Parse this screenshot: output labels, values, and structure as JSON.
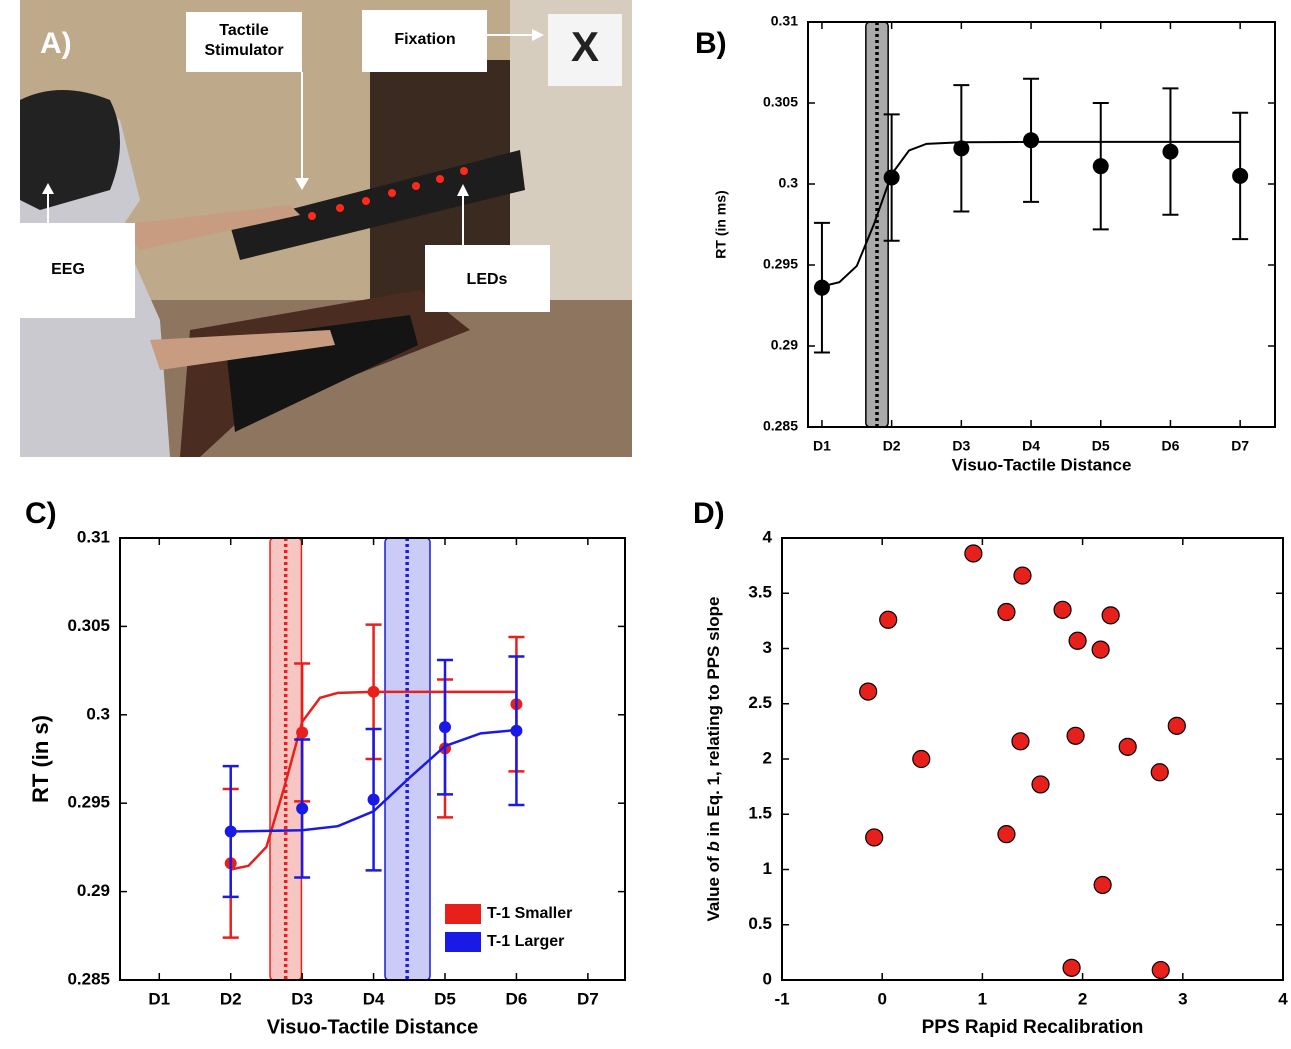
{
  "photo": {
    "panel_label": "A)",
    "tactile_stimulator": [
      "Tactile",
      "Stimulator"
    ],
    "fixation": "Fixation",
    "target": "X",
    "eeg": "EEG",
    "leds": "LEDs"
  },
  "chart_data": [
    {
      "type": "errorbar",
      "panel_label": "B)",
      "xlabel": "Visuo-Tactile Distance",
      "ylabel": "RT (in ms)",
      "xlim": [
        0.8,
        7.5
      ],
      "xticks": [
        {
          "value": 1,
          "label": "D1"
        },
        {
          "value": 2,
          "label": "D2"
        },
        {
          "value": 3,
          "label": "D3"
        },
        {
          "value": 4,
          "label": "D4"
        },
        {
          "value": 5,
          "label": "D5"
        },
        {
          "value": 6,
          "label": "D6"
        },
        {
          "value": 7,
          "label": "D7"
        }
      ],
      "ylim": [
        0.285,
        0.31
      ],
      "yticks": [
        0.285,
        0.29,
        0.295,
        0.3,
        0.305,
        0.31
      ],
      "series": [
        {
          "color": "#000000",
          "x": [
            1,
            2,
            3,
            4,
            5,
            6,
            7
          ],
          "values": [
            0.2936,
            0.3004,
            0.3022,
            0.3027,
            0.3011,
            0.302,
            0.3005
          ],
          "errors": [
            0.004,
            0.0039,
            0.0039,
            0.0038,
            0.0039,
            0.0039,
            0.0039
          ],
          "fit_x": [
            1,
            1.25,
            1.5,
            1.75,
            2,
            2.25,
            2.5,
            3,
            4,
            5,
            6,
            7
          ],
          "fit_values": [
            0.29368,
            0.29394,
            0.29494,
            0.29756,
            0.3006,
            0.30207,
            0.30248,
            0.30258,
            0.3026,
            0.3026,
            0.3026,
            0.3026
          ],
          "threshold": 1.79,
          "threshold_band": [
            1.63,
            1.95
          ],
          "band_color": "#aaaaaa"
        }
      ]
    },
    {
      "type": "errorbar",
      "panel_label": "C)",
      "xlabel": "Visuo-Tactile Distance",
      "ylabel": "RT (in s)",
      "xlim": [
        0.45,
        7.52
      ],
      "xticks": [
        {
          "value": 1,
          "label": "D1"
        },
        {
          "value": 2,
          "label": "D2"
        },
        {
          "value": 3,
          "label": "D3"
        },
        {
          "value": 4,
          "label": "D4"
        },
        {
          "value": 5,
          "label": "D5"
        },
        {
          "value": 6,
          "label": "D6"
        },
        {
          "value": 7,
          "label": "D7"
        }
      ],
      "ylim": [
        0.285,
        0.31
      ],
      "yticks": [
        0.285,
        0.29,
        0.295,
        0.3,
        0.305,
        0.31
      ],
      "legend": "lower right",
      "series": [
        {
          "name": "T-1 Smaller",
          "color": "#e8201c",
          "x": [
            2,
            3,
            4,
            5,
            6
          ],
          "values": [
            0.2916,
            0.299,
            0.3013,
            0.2981,
            0.3006
          ],
          "errors": [
            0.0042,
            0.0039,
            0.0038,
            0.0039,
            0.0038
          ],
          "fit_x": [
            2,
            2.25,
            2.5,
            2.75,
            3,
            3.25,
            3.5,
            4,
            5,
            6
          ],
          "fit_values": [
            0.29125,
            0.29146,
            0.29253,
            0.2959,
            0.2996,
            0.30096,
            0.30124,
            0.3013,
            0.3013,
            0.3013
          ],
          "threshold": 2.77,
          "threshold_band": [
            2.55,
            2.99
          ],
          "band_color": "#f4a09a"
        },
        {
          "name": "T-1 Larger",
          "color": "#1a1ae6",
          "x": [
            2,
            3,
            4,
            5,
            6
          ],
          "values": [
            0.2934,
            0.2947,
            0.2952,
            0.2993,
            0.2991
          ],
          "errors": [
            0.0037,
            0.0039,
            0.004,
            0.0038,
            0.0042
          ],
          "fit_x": [
            2,
            3,
            3.5,
            4,
            4.5,
            5,
            5.5,
            6
          ],
          "fit_values": [
            0.2934,
            0.29347,
            0.2937,
            0.29454,
            0.29643,
            0.29823,
            0.29895,
            0.29914
          ],
          "threshold": 4.47,
          "threshold_band": [
            4.16,
            4.79
          ],
          "band_color": "#a6a8f0"
        }
      ]
    },
    {
      "type": "scatter",
      "panel_label": "D)",
      "xlabel": "PPS Rapid Recalibration",
      "ylabel": [
        "Value of ",
        "b",
        " in Eq. 1, relating to PPS slope"
      ],
      "xlim": [
        -1,
        4
      ],
      "xticks": [
        -1,
        0,
        1,
        2,
        3,
        4
      ],
      "ylim": [
        0,
        4
      ],
      "yticks": [
        0,
        0.5,
        1,
        1.5,
        2,
        2.5,
        3,
        3.5,
        4
      ],
      "color": "#e8201c",
      "x": [
        0.91,
        1.4,
        1.24,
        1.8,
        2.28,
        0.06,
        1.95,
        2.18,
        -0.14,
        2.94,
        1.38,
        1.93,
        2.45,
        0.39,
        2.77,
        1.58,
        -0.08,
        1.24,
        2.2,
        1.89,
        2.78
      ],
      "values": [
        3.86,
        3.66,
        3.33,
        3.35,
        3.3,
        3.26,
        3.07,
        2.99,
        2.61,
        2.3,
        2.16,
        2.21,
        2.11,
        2.0,
        1.88,
        1.77,
        1.29,
        1.32,
        0.86,
        0.11,
        0.09
      ]
    }
  ]
}
